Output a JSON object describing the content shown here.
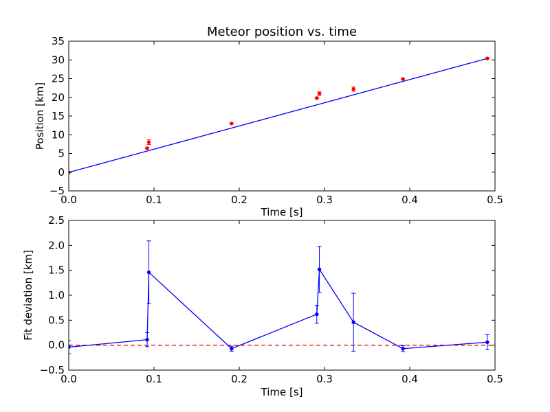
{
  "chart_data": [
    {
      "type": "scatter",
      "title": "Meteor position vs. time",
      "xlabel": "Time [s]",
      "ylabel": "Position [km]",
      "xlim": [
        0.0,
        0.5
      ],
      "ylim": [
        -5,
        35
      ],
      "x_ticks": [
        "0.0",
        "0.1",
        "0.2",
        "0.3",
        "0.4",
        "0.5"
      ],
      "y_ticks": [
        "−5",
        "0",
        "5",
        "10",
        "15",
        "20",
        "25",
        "30",
        "35"
      ],
      "grid": false,
      "colors": {
        "points": "#ff0000",
        "fit": "#0000ff"
      },
      "series": [
        {
          "kind": "points-with-errorbars",
          "x": [
            0.0,
            0.092,
            0.094,
            0.191,
            0.291,
            0.294,
            0.334,
            0.392,
            0.491
          ],
          "y": [
            -0.05,
            6.4,
            8.0,
            13.0,
            19.8,
            21.0,
            22.2,
            24.9,
            30.4
          ],
          "yerr": [
            0.1,
            0.14,
            0.63,
            0.06,
            0.19,
            0.47,
            0.58,
            0.06,
            0.15
          ]
        },
        {
          "kind": "line",
          "x": [
            0.0,
            0.491
          ],
          "y": [
            -0.05,
            30.4
          ]
        }
      ]
    },
    {
      "type": "line",
      "title": "",
      "xlabel": "Time [s]",
      "ylabel": "Fit deviation [km]",
      "xlim": [
        0.0,
        0.5
      ],
      "ylim": [
        -0.5,
        2.5
      ],
      "x_ticks": [
        "0.0",
        "0.1",
        "0.2",
        "0.3",
        "0.4",
        "0.5"
      ],
      "y_ticks": [
        "−0.5",
        "0.0",
        "0.5",
        "1.0",
        "1.5",
        "2.0",
        "2.5"
      ],
      "grid": false,
      "colors": {
        "line": "#0000ff",
        "zero": "#ff0000"
      },
      "series": [
        {
          "kind": "line-with-errorbars",
          "x": [
            0.0,
            0.092,
            0.094,
            0.191,
            0.291,
            0.294,
            0.334,
            0.392,
            0.491
          ],
          "y": [
            -0.04,
            0.11,
            1.46,
            -0.07,
            0.62,
            1.52,
            0.46,
            -0.07,
            0.06
          ],
          "yerr": [
            0.13,
            0.14,
            0.63,
            0.05,
            0.18,
            0.46,
            0.58,
            0.06,
            0.15
          ]
        },
        {
          "kind": "zero-reference",
          "x": [
            0.0,
            0.5
          ],
          "y": [
            0.0,
            0.0
          ]
        }
      ]
    }
  ]
}
